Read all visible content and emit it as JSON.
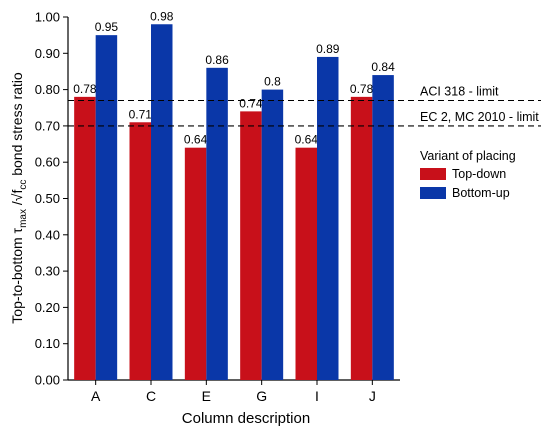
{
  "chart_data": {
    "type": "bar",
    "categories": [
      "A",
      "C",
      "E",
      "G",
      "I",
      "J"
    ],
    "series": [
      {
        "name": "Top-down",
        "values": [
          0.78,
          0.71,
          0.64,
          0.74,
          0.64,
          0.78
        ],
        "labels": [
          "0.78",
          "0.71",
          "0.64",
          "0.74",
          "0.64",
          "0.78"
        ],
        "color": "#c8101a"
      },
      {
        "name": "Bottom-up",
        "values": [
          0.95,
          0.98,
          0.86,
          0.8,
          0.89,
          0.84
        ],
        "labels": [
          "0.95",
          "0.98",
          "0.86",
          "0.8",
          "0.89",
          "0.84"
        ],
        "color": "#0a37a8"
      }
    ],
    "xlabel": "Column description",
    "ylabel": {
      "pre": "Top-to-bottom τ",
      "sub1": "max",
      "mid": " /√f",
      "sub2": "cc",
      "post": " bond stress ratio"
    },
    "ylim": [
      0,
      1
    ],
    "yticks": [
      "0.00",
      "0.10",
      "0.20",
      "0.30",
      "0.40",
      "0.50",
      "0.60",
      "0.70",
      "0.80",
      "0.90",
      "1.00"
    ],
    "reference_lines": [
      {
        "label": "ACI 318 - limit",
        "value": 0.77
      },
      {
        "label": "EC 2, MC 2010 - limit",
        "value": 0.7
      }
    ],
    "legend": {
      "title": "Variant of placing",
      "position": "right"
    },
    "grid": false
  }
}
